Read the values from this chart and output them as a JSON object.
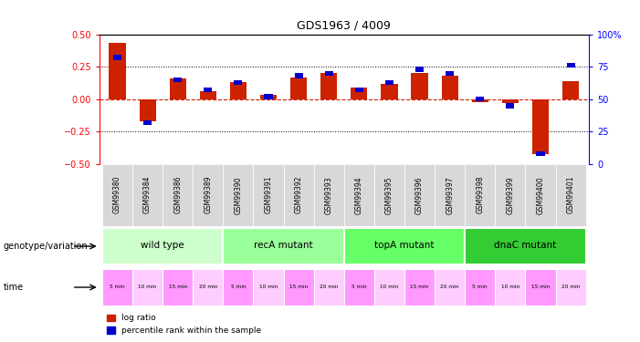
{
  "title": "GDS1963 / 4009",
  "samples": [
    "GSM99380",
    "GSM99384",
    "GSM99386",
    "GSM99389",
    "GSM99390",
    "GSM99391",
    "GSM99392",
    "GSM99393",
    "GSM99394",
    "GSM99395",
    "GSM99396",
    "GSM99397",
    "GSM99398",
    "GSM99399",
    "GSM99400",
    "GSM99401"
  ],
  "log_ratio": [
    0.43,
    -0.17,
    0.16,
    0.06,
    0.13,
    0.03,
    0.17,
    0.2,
    0.09,
    0.12,
    0.2,
    0.18,
    -0.02,
    -0.03,
    -0.42,
    0.14
  ],
  "percentile": [
    82,
    32,
    65,
    57,
    63,
    52,
    68,
    70,
    57,
    63,
    73,
    70,
    50,
    45,
    8,
    76
  ],
  "groups": [
    {
      "name": "wild type",
      "start": 0,
      "end": 4,
      "color": "#ccffcc"
    },
    {
      "name": "recA mutant",
      "start": 4,
      "end": 8,
      "color": "#99ff99"
    },
    {
      "name": "topA mutant",
      "start": 8,
      "end": 12,
      "color": "#66ff66"
    },
    {
      "name": "dnaC mutant",
      "start": 12,
      "end": 16,
      "color": "#33cc33"
    }
  ],
  "times": [
    "5 min",
    "10 min",
    "15 min",
    "20 min",
    "5 min",
    "10 min",
    "15 min",
    "20 min",
    "5 min",
    "10 min",
    "15 min",
    "20 min",
    "5 min",
    "10 min",
    "15 min",
    "20 min"
  ],
  "time_colors": [
    "#ff99ff",
    "#ffccff",
    "#ff99ff",
    "#ffccff",
    "#ff99ff",
    "#ffccff",
    "#ff99ff",
    "#ffccff",
    "#ff99ff",
    "#ffccff",
    "#ff99ff",
    "#ffccff",
    "#ff99ff",
    "#ffccff",
    "#ff99ff",
    "#ffccff"
  ],
  "bar_color": "#cc2200",
  "dot_color": "#0000cc",
  "ylim_left": [
    -0.5,
    0.5
  ],
  "ylim_right": [
    0,
    100
  ],
  "yticks_left": [
    -0.5,
    -0.25,
    0,
    0.25,
    0.5
  ],
  "yticks_right": [
    0,
    25,
    50,
    75,
    100
  ],
  "hline_positions": [
    0.25,
    -0.25
  ],
  "legend_log_ratio": "log ratio",
  "legend_percentile": "percentile rank within the sample",
  "label_genotype": "genotype/variation",
  "label_time": "time",
  "bg_color": "#f0f0f0"
}
